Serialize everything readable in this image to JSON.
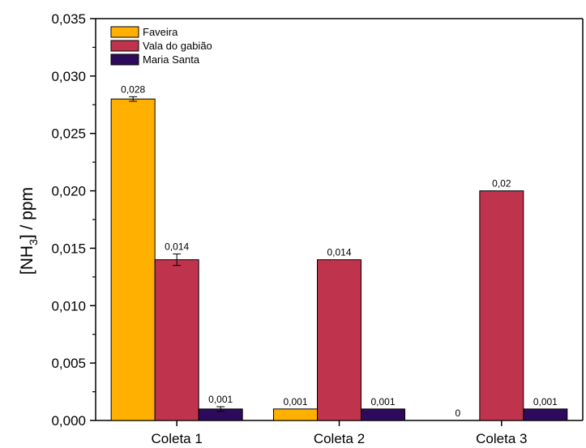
{
  "chart_data": {
    "type": "bar",
    "categories": [
      "Coleta 1",
      "Coleta 2",
      "Coleta 3"
    ],
    "series": [
      {
        "name": "Faveira",
        "color": "#FFB000",
        "values": [
          0.028,
          0.001,
          0
        ],
        "errors": [
          0.0002,
          0,
          0
        ],
        "labels": [
          "0,028",
          "0,001",
          "0"
        ]
      },
      {
        "name": "Vala do gabião",
        "color": "#C0334D",
        "values": [
          0.014,
          0.014,
          0.02
        ],
        "errors": [
          0.0005,
          0,
          0
        ],
        "labels": [
          "0,014",
          "0,014",
          "0,02"
        ]
      },
      {
        "name": "Maria Santa",
        "color": "#2E0A5C",
        "values": [
          0.001,
          0.001,
          0.001
        ],
        "errors": [
          0.0002,
          0,
          0
        ],
        "labels": [
          "0,001",
          "0,001",
          "0,001"
        ]
      }
    ],
    "ylabel": {
      "main": "[NH",
      "sub": "3",
      "rest": "] / ppm"
    },
    "xlabel": "",
    "ylim": [
      0,
      0.035
    ],
    "yticks": [
      0,
      0.005,
      0.01,
      0.015,
      0.02,
      0.025,
      0.03,
      0.035
    ],
    "ytick_labels": [
      "0,000",
      "0,005",
      "0,010",
      "0,015",
      "0,020",
      "0,025",
      "0,030",
      "0,035"
    ],
    "legend_position": "top-left",
    "grid": false
  }
}
